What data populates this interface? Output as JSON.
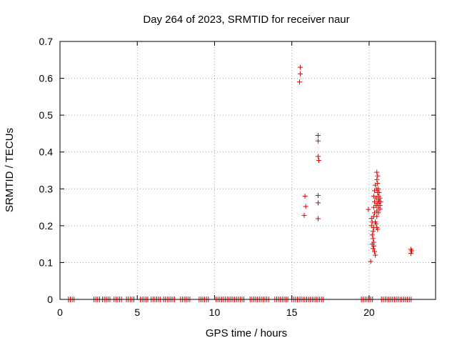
{
  "chart_data": {
    "type": "scatter",
    "title": "Day 264 of 2023, SRMTID for receiver naur",
    "xlabel": "GPS time / hours",
    "ylabel": "SRMTID / TECUs",
    "xlim": [
      0,
      24.3
    ],
    "ylim": [
      0,
      0.7
    ],
    "xticks": [
      0,
      5,
      10,
      15,
      20
    ],
    "yticks": [
      0,
      0.1,
      0.2,
      0.3,
      0.4,
      0.5,
      0.6,
      0.7
    ],
    "xtick_labels": [
      "0",
      "5",
      "10",
      "15",
      "20"
    ],
    "ytick_labels": [
      "0",
      "0.1",
      "0.2",
      "0.3",
      "0.4",
      "0.5",
      "0.6",
      "0.7"
    ],
    "grid": true,
    "marker": "+",
    "marker_color": "#e00000",
    "zero_segments": [
      [
        0.55,
        0.95
      ],
      [
        2.2,
        2.6
      ],
      [
        2.75,
        3.25
      ],
      [
        3.5,
        4.0
      ],
      [
        4.3,
        4.8
      ],
      [
        5.2,
        5.7
      ],
      [
        5.9,
        6.5
      ],
      [
        6.7,
        7.5
      ],
      [
        7.8,
        8.5
      ],
      [
        9.0,
        9.6
      ],
      [
        10.1,
        12.0
      ],
      [
        12.3,
        13.6
      ],
      [
        13.9,
        14.8
      ],
      [
        15.0,
        17.1
      ],
      [
        19.5,
        20.3
      ],
      [
        20.8,
        22.8
      ]
    ],
    "points": [
      [
        15.55,
        0.63
      ],
      [
        15.55,
        0.612
      ],
      [
        15.5,
        0.59
      ],
      [
        15.85,
        0.28
      ],
      [
        15.9,
        0.252
      ],
      [
        15.8,
        0.228
      ],
      [
        16.7,
        0.445
      ],
      [
        16.7,
        0.43
      ],
      [
        16.7,
        0.388
      ],
      [
        16.75,
        0.377
      ],
      [
        16.7,
        0.282
      ],
      [
        16.7,
        0.262
      ],
      [
        16.7,
        0.219
      ],
      [
        19.95,
        0.244
      ],
      [
        20.1,
        0.103
      ],
      [
        20.15,
        0.22
      ],
      [
        20.2,
        0.21
      ],
      [
        20.15,
        0.2
      ],
      [
        20.3,
        0.195
      ],
      [
        20.25,
        0.185
      ],
      [
        20.2,
        0.175
      ],
      [
        20.25,
        0.165
      ],
      [
        20.3,
        0.155
      ],
      [
        20.2,
        0.15
      ],
      [
        20.3,
        0.145
      ],
      [
        20.25,
        0.138
      ],
      [
        20.35,
        0.13
      ],
      [
        20.4,
        0.12
      ],
      [
        20.3,
        0.225
      ],
      [
        20.4,
        0.21
      ],
      [
        20.35,
        0.235
      ],
      [
        20.3,
        0.25
      ],
      [
        20.35,
        0.265
      ],
      [
        20.3,
        0.28
      ],
      [
        20.35,
        0.295
      ],
      [
        20.4,
        0.31
      ],
      [
        20.45,
        0.275
      ],
      [
        20.45,
        0.255
      ],
      [
        20.5,
        0.24
      ],
      [
        20.5,
        0.225
      ],
      [
        20.45,
        0.205
      ],
      [
        20.5,
        0.195
      ],
      [
        20.55,
        0.19
      ],
      [
        20.5,
        0.3
      ],
      [
        20.55,
        0.315
      ],
      [
        20.5,
        0.325
      ],
      [
        20.55,
        0.335
      ],
      [
        20.5,
        0.345
      ],
      [
        20.55,
        0.29
      ],
      [
        20.6,
        0.28
      ],
      [
        20.6,
        0.27
      ],
      [
        20.55,
        0.26
      ],
      [
        20.6,
        0.25
      ],
      [
        20.6,
        0.235
      ],
      [
        20.65,
        0.29
      ],
      [
        20.65,
        0.265
      ],
      [
        20.7,
        0.255
      ],
      [
        20.7,
        0.275
      ],
      [
        20.75,
        0.265
      ],
      [
        20.7,
        0.245
      ],
      [
        20.6,
        0.3
      ],
      [
        22.7,
        0.136
      ],
      [
        22.7,
        0.125
      ],
      [
        22.75,
        0.132
      ]
    ]
  }
}
